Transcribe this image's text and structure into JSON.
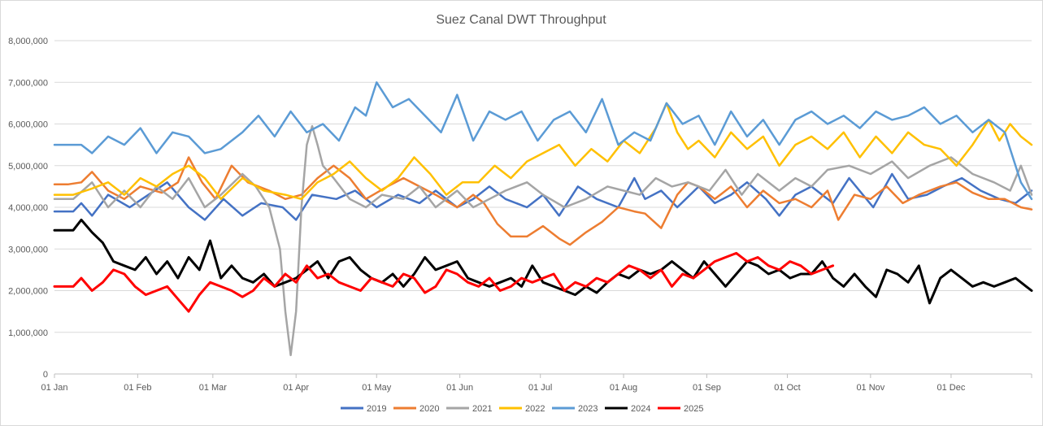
{
  "chart_data": {
    "type": "line",
    "title": "Suez Canal DWT Throughput",
    "xlabel": "",
    "ylabel": "",
    "ylim": [
      0,
      8000000
    ],
    "y_ticks": [
      "0",
      "1,000,000",
      "2,000,000",
      "3,000,000",
      "4,000,000",
      "5,000,000",
      "6,000,000",
      "7,000,000",
      "8,000,000"
    ],
    "y_tick_values": [
      0,
      1000000,
      2000000,
      3000000,
      4000000,
      5000000,
      6000000,
      7000000,
      8000000
    ],
    "x_ticks": [
      "01 Jan",
      "01 Feb",
      "01 Mar",
      "01 Apr",
      "01 May",
      "01 Jun",
      "01 Jul",
      "01 Aug",
      "01 Sep",
      "01 Oct",
      "01 Nov",
      "01 Dec"
    ],
    "x_tick_days": [
      0,
      31,
      59,
      90,
      120,
      151,
      181,
      212,
      243,
      273,
      304,
      334
    ],
    "xlim_days": [
      0,
      364
    ],
    "grid": true,
    "legend": "bottom",
    "series": [
      {
        "name": "2019",
        "color": "#4472C4",
        "x": [
          0,
          7,
          10,
          14,
          20,
          28,
          35,
          42,
          50,
          56,
          63,
          70,
          77,
          85,
          90,
          96,
          105,
          112,
          120,
          128,
          136,
          142,
          150,
          156,
          162,
          168,
          176,
          182,
          188,
          195,
          202,
          210,
          216,
          220,
          226,
          232,
          240,
          246,
          252,
          258,
          265,
          270,
          276,
          282,
          290,
          296,
          305,
          312,
          318,
          325,
          331,
          338,
          345,
          352,
          358,
          364
        ],
        "y": [
          3900000,
          3900000,
          4100000,
          3800000,
          4300000,
          4000000,
          4300000,
          4600000,
          4000000,
          3700000,
          4200000,
          3800000,
          4100000,
          4000000,
          3700000,
          4300000,
          4200000,
          4400000,
          4000000,
          4300000,
          4100000,
          4400000,
          4000000,
          4200000,
          4500000,
          4200000,
          4000000,
          4300000,
          3800000,
          4500000,
          4200000,
          4000000,
          4700000,
          4200000,
          4400000,
          4000000,
          4500000,
          4100000,
          4300000,
          4600000,
          4200000,
          3800000,
          4300000,
          4500000,
          4100000,
          4700000,
          4000000,
          4800000,
          4200000,
          4300000,
          4500000,
          4700000,
          4400000,
          4200000,
          4100000,
          4400000
        ]
      },
      {
        "name": "2020",
        "color": "#ED7D31",
        "x": [
          0,
          5,
          10,
          14,
          20,
          26,
          32,
          40,
          46,
          50,
          55,
          60,
          66,
          72,
          80,
          86,
          92,
          98,
          104,
          110,
          116,
          124,
          130,
          136,
          142,
          150,
          156,
          160,
          165,
          170,
          176,
          182,
          188,
          192,
          198,
          204,
          210,
          216,
          220,
          226,
          232,
          236,
          240,
          246,
          252,
          258,
          264,
          270,
          276,
          282,
          288,
          292,
          298,
          304,
          310,
          316,
          322,
          330,
          336,
          342,
          348,
          354,
          360,
          364
        ],
        "y": [
          4550000,
          4550000,
          4600000,
          4850000,
          4400000,
          4200000,
          4500000,
          4350000,
          4600000,
          5200000,
          4600000,
          4200000,
          5000000,
          4600000,
          4400000,
          4200000,
          4300000,
          4700000,
          5000000,
          4700000,
          4200000,
          4500000,
          4700000,
          4500000,
          4300000,
          4000000,
          4300000,
          4100000,
          3600000,
          3300000,
          3300000,
          3550000,
          3250000,
          3100000,
          3400000,
          3650000,
          4000000,
          3900000,
          3850000,
          3500000,
          4300000,
          4600000,
          4500000,
          4200000,
          4500000,
          4000000,
          4400000,
          4100000,
          4200000,
          4000000,
          4400000,
          3700000,
          4300000,
          4200000,
          4500000,
          4100000,
          4300000,
          4500000,
          4600000,
          4350000,
          4200000,
          4200000,
          4000000,
          3950000
        ]
      },
      {
        "name": "2021",
        "color": "#A5A5A5",
        "x": [
          0,
          7,
          14,
          20,
          26,
          32,
          38,
          44,
          50,
          56,
          62,
          70,
          75,
          80,
          84,
          86,
          88,
          90,
          92,
          94,
          96,
          98,
          100,
          104,
          110,
          116,
          122,
          130,
          136,
          142,
          150,
          156,
          162,
          168,
          176,
          182,
          190,
          198,
          206,
          212,
          218,
          224,
          230,
          236,
          244,
          250,
          256,
          262,
          270,
          276,
          282,
          288,
          296,
          304,
          312,
          318,
          326,
          334,
          342,
          350,
          356,
          360,
          364
        ],
        "y": [
          4200000,
          4200000,
          4600000,
          4000000,
          4400000,
          4000000,
          4500000,
          4200000,
          4700000,
          4000000,
          4300000,
          4800000,
          4500000,
          4000000,
          3000000,
          1500000,
          450000,
          1500000,
          4000000,
          5500000,
          5950000,
          5500000,
          5000000,
          4700000,
          4200000,
          4000000,
          4300000,
          4200000,
          4500000,
          4000000,
          4400000,
          4000000,
          4200000,
          4400000,
          4600000,
          4300000,
          4000000,
          4200000,
          4500000,
          4400000,
          4300000,
          4700000,
          4500000,
          4600000,
          4400000,
          4900000,
          4300000,
          4800000,
          4400000,
          4700000,
          4500000,
          4900000,
          5000000,
          4800000,
          5100000,
          4700000,
          5000000,
          5200000,
          4800000,
          4600000,
          4400000,
          5000000,
          4300000
        ]
      },
      {
        "name": "2022",
        "color": "#FFC000",
        "x": [
          0,
          7,
          14,
          20,
          26,
          32,
          38,
          44,
          50,
          56,
          62,
          70,
          78,
          86,
          92,
          98,
          104,
          110,
          116,
          122,
          128,
          134,
          140,
          146,
          152,
          158,
          164,
          170,
          176,
          182,
          188,
          194,
          200,
          206,
          212,
          218,
          224,
          228,
          232,
          236,
          240,
          246,
          252,
          258,
          264,
          270,
          276,
          282,
          288,
          294,
          300,
          306,
          312,
          318,
          324,
          330,
          336,
          342,
          348,
          352,
          356,
          360,
          364
        ],
        "y": [
          4300000,
          4300000,
          4450000,
          4600000,
          4300000,
          4700000,
          4500000,
          4800000,
          5000000,
          4700000,
          4200000,
          4700000,
          4400000,
          4300000,
          4200000,
          4600000,
          4800000,
          5100000,
          4700000,
          4400000,
          4700000,
          5200000,
          4800000,
          4300000,
          4600000,
          4600000,
          5000000,
          4700000,
          5100000,
          5300000,
          5500000,
          5000000,
          5400000,
          5100000,
          5600000,
          5300000,
          5900000,
          6500000,
          5800000,
          5400000,
          5600000,
          5200000,
          5800000,
          5400000,
          5700000,
          5000000,
          5500000,
          5700000,
          5400000,
          5800000,
          5200000,
          5700000,
          5300000,
          5800000,
          5500000,
          5400000,
          5000000,
          5500000,
          6100000,
          5600000,
          6000000,
          5700000,
          5500000
        ]
      },
      {
        "name": "2023",
        "color": "#5B9BD5",
        "x": [
          0,
          7,
          10,
          14,
          20,
          26,
          32,
          38,
          44,
          50,
          56,
          62,
          70,
          76,
          82,
          88,
          94,
          100,
          106,
          112,
          116,
          120,
          126,
          132,
          138,
          144,
          150,
          156,
          162,
          168,
          174,
          180,
          186,
          192,
          198,
          204,
          210,
          216,
          222,
          228,
          234,
          240,
          246,
          252,
          258,
          264,
          270,
          276,
          282,
          288,
          294,
          300,
          306,
          312,
          318,
          324,
          330,
          336,
          342,
          348,
          354,
          360,
          364
        ],
        "y": [
          5500000,
          5500000,
          5500000,
          5300000,
          5700000,
          5500000,
          5900000,
          5300000,
          5800000,
          5700000,
          5300000,
          5400000,
          5800000,
          6200000,
          5700000,
          6300000,
          5800000,
          6000000,
          5600000,
          6400000,
          6200000,
          7000000,
          6400000,
          6600000,
          6200000,
          5800000,
          6700000,
          5600000,
          6300000,
          6100000,
          6300000,
          5600000,
          6100000,
          6300000,
          5800000,
          6600000,
          5500000,
          5800000,
          5600000,
          6500000,
          6000000,
          6200000,
          5500000,
          6300000,
          5700000,
          6100000,
          5500000,
          6100000,
          6300000,
          6000000,
          6200000,
          5900000,
          6300000,
          6100000,
          6200000,
          6400000,
          6000000,
          6200000,
          5800000,
          6100000,
          5800000,
          4600000,
          4200000
        ]
      },
      {
        "name": "2024",
        "color": "#000000",
        "x": [
          0,
          7,
          10,
          14,
          18,
          22,
          26,
          30,
          34,
          38,
          42,
          46,
          50,
          54,
          58,
          62,
          66,
          70,
          74,
          78,
          82,
          86,
          90,
          94,
          98,
          102,
          106,
          110,
          114,
          118,
          122,
          126,
          130,
          134,
          138,
          142,
          146,
          150,
          154,
          158,
          162,
          166,
          170,
          174,
          178,
          182,
          186,
          190,
          194,
          198,
          202,
          206,
          210,
          214,
          218,
          222,
          226,
          230,
          234,
          238,
          242,
          246,
          250,
          254,
          258,
          262,
          266,
          270,
          274,
          278,
          282,
          286,
          290,
          294,
          298,
          302,
          306,
          310,
          314,
          318,
          322,
          326,
          330,
          334,
          338,
          342,
          346,
          350,
          354,
          358,
          362,
          364
        ],
        "y": [
          3450000,
          3450000,
          3700000,
          3400000,
          3150000,
          2700000,
          2600000,
          2500000,
          2800000,
          2400000,
          2700000,
          2300000,
          2800000,
          2500000,
          3200000,
          2300000,
          2600000,
          2300000,
          2200000,
          2400000,
          2100000,
          2200000,
          2300000,
          2500000,
          2700000,
          2300000,
          2700000,
          2800000,
          2500000,
          2300000,
          2200000,
          2400000,
          2100000,
          2400000,
          2800000,
          2500000,
          2600000,
          2700000,
          2300000,
          2200000,
          2100000,
          2200000,
          2300000,
          2100000,
          2600000,
          2200000,
          2100000,
          2000000,
          1900000,
          2100000,
          1950000,
          2200000,
          2400000,
          2300000,
          2500000,
          2400000,
          2500000,
          2700000,
          2500000,
          2300000,
          2700000,
          2400000,
          2100000,
          2400000,
          2700000,
          2600000,
          2400000,
          2500000,
          2300000,
          2400000,
          2400000,
          2700000,
          2300000,
          2100000,
          2400000,
          2100000,
          1850000,
          2500000,
          2400000,
          2200000,
          2600000,
          1700000,
          2300000,
          2500000,
          2300000,
          2100000,
          2200000,
          2100000,
          2200000,
          2300000,
          2100000,
          2000000
        ]
      },
      {
        "name": "2025",
        "color": "#FF0000",
        "x": [
          0,
          7,
          10,
          14,
          18,
          22,
          26,
          30,
          34,
          38,
          42,
          46,
          50,
          54,
          58,
          62,
          66,
          70,
          74,
          78,
          82,
          86,
          90,
          94,
          98,
          102,
          106,
          110,
          114,
          118,
          122,
          126,
          130,
          134,
          138,
          142,
          146,
          150,
          154,
          158,
          162,
          166,
          170,
          174,
          178,
          182,
          186,
          190,
          194,
          198,
          202,
          206,
          210,
          214,
          218,
          222,
          226,
          230,
          234,
          238,
          242,
          246,
          250,
          254,
          258,
          262,
          266,
          270,
          274,
          278,
          282,
          286,
          290
        ],
        "y": [
          2100000,
          2100000,
          2300000,
          2000000,
          2200000,
          2500000,
          2400000,
          2100000,
          1900000,
          2000000,
          2100000,
          1800000,
          1500000,
          1900000,
          2200000,
          2100000,
          2000000,
          1850000,
          2000000,
          2300000,
          2100000,
          2400000,
          2200000,
          2600000,
          2300000,
          2400000,
          2200000,
          2100000,
          2000000,
          2300000,
          2200000,
          2100000,
          2400000,
          2300000,
          1950000,
          2100000,
          2500000,
          2400000,
          2200000,
          2100000,
          2300000,
          2000000,
          2100000,
          2300000,
          2200000,
          2300000,
          2400000,
          2000000,
          2200000,
          2100000,
          2300000,
          2200000,
          2400000,
          2600000,
          2500000,
          2300000,
          2500000,
          2100000,
          2400000,
          2300000,
          2500000,
          2700000,
          2800000,
          2900000,
          2700000,
          2800000,
          2600000,
          2500000,
          2700000,
          2600000,
          2400000,
          2500000,
          2600000
        ]
      }
    ]
  }
}
